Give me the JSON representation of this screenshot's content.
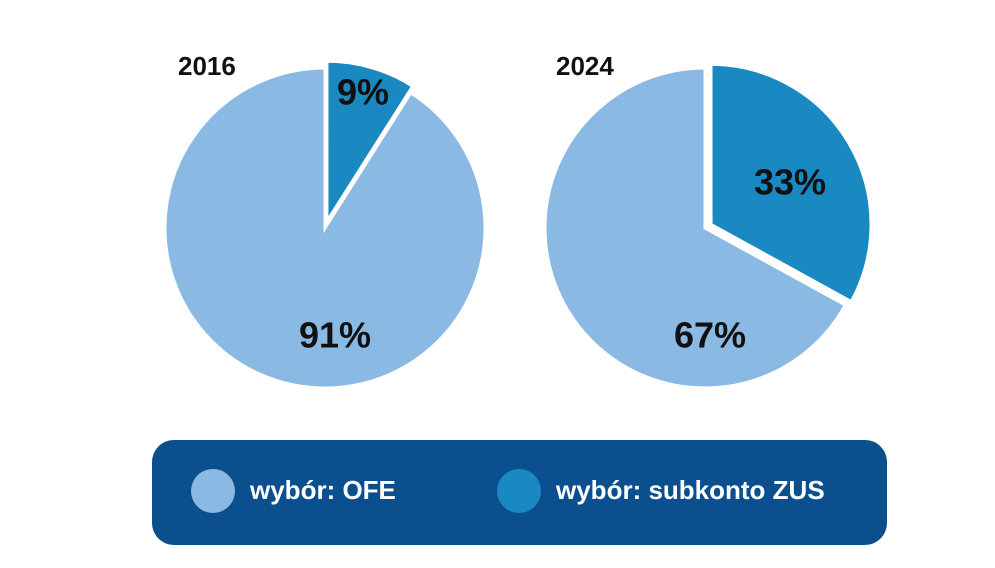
{
  "chart_data": [
    {
      "type": "pie",
      "title": "2016",
      "categories": [
        "wybór: OFE",
        "wybór: subkonto ZUS"
      ],
      "values": [
        91,
        9
      ],
      "value_labels": [
        "91%",
        "9%"
      ],
      "colors": [
        "#8ab9e3",
        "#1a89c2"
      ]
    },
    {
      "type": "pie",
      "title": "2024",
      "categories": [
        "wybór: OFE",
        "wybór: subkonto ZUS"
      ],
      "values": [
        67,
        33
      ],
      "value_labels": [
        "67%",
        "33%"
      ],
      "colors": [
        "#8ab9e3",
        "#1a89c2"
      ]
    }
  ]
}
